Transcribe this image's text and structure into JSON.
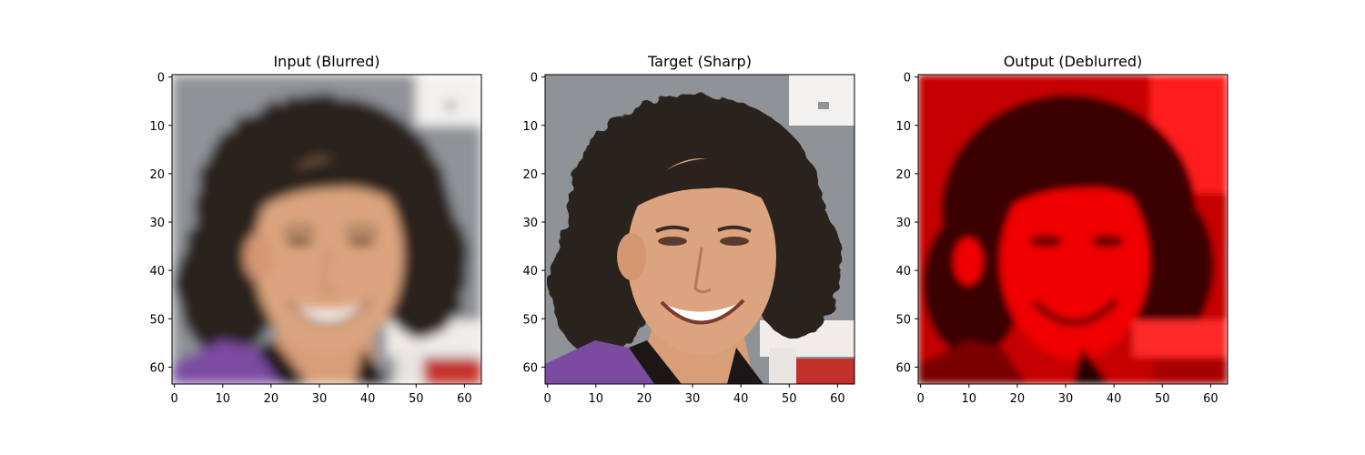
{
  "panels": [
    {
      "title": "Input (Blurred)",
      "image": "blurred-face-photo",
      "tint": "natural"
    },
    {
      "title": "Target (Sharp)",
      "image": "sharp-face-photo",
      "tint": "natural"
    },
    {
      "title": "Output (Deblurred)",
      "image": "deblurred-face-photo",
      "tint": "red-channel"
    }
  ],
  "chart_data": [
    {
      "type": "image",
      "title": "Input (Blurred)",
      "x_ticks": [
        0,
        10,
        20,
        30,
        40,
        50,
        60
      ],
      "y_ticks": [
        0,
        10,
        20,
        30,
        40,
        50,
        60
      ],
      "xlim": [
        -0.5,
        63.5
      ],
      "ylim": [
        63.5,
        -0.5
      ]
    },
    {
      "type": "image",
      "title": "Target (Sharp)",
      "x_ticks": [
        0,
        10,
        20,
        30,
        40,
        50,
        60
      ],
      "y_ticks": [
        0,
        10,
        20,
        30,
        40,
        50,
        60
      ],
      "xlim": [
        -0.5,
        63.5
      ],
      "ylim": [
        63.5,
        -0.5
      ]
    },
    {
      "type": "image",
      "title": "Output (Deblurred)",
      "x_ticks": [
        0,
        10,
        20,
        30,
        40,
        50,
        60
      ],
      "y_ticks": [
        0,
        10,
        20,
        30,
        40,
        50,
        60
      ],
      "xlim": [
        -0.5,
        63.5
      ],
      "ylim": [
        63.5,
        -0.5
      ]
    }
  ],
  "colors": {
    "background_gray": "#8e9196",
    "skin": "#d9a07a",
    "hair": "#2a201b",
    "jacket_purple": "#7a4aa0",
    "shirt_black": "#1a1616",
    "white_sign": "#f2f0ee",
    "red_sign": "#c0312c",
    "output_red_bg": "#d40000",
    "output_red_skin": "#f00000",
    "output_dark": "#3c0000"
  }
}
